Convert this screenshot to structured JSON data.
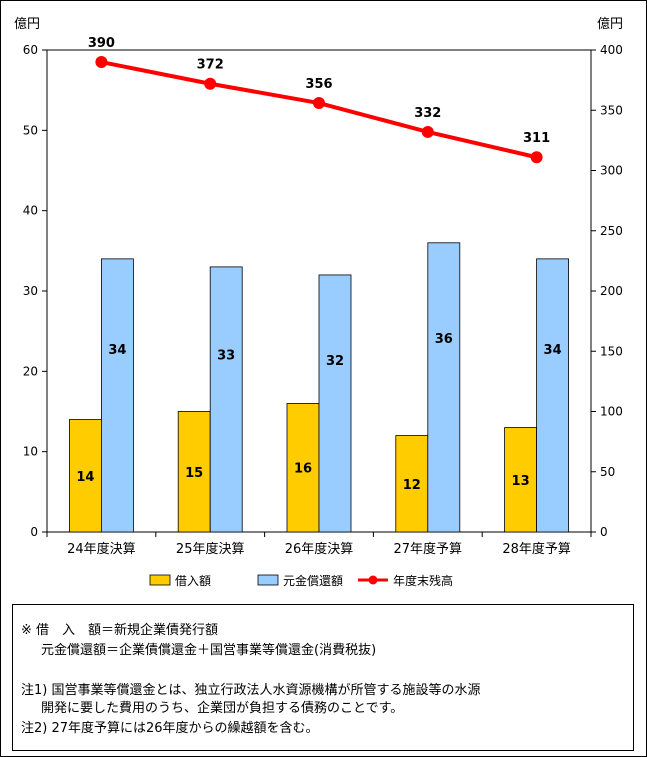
{
  "chart_data": {
    "type": "bar+line",
    "categories": [
      "24年度決算",
      "25年度決算",
      "26年度決算",
      "27年度予算",
      "28年度予算"
    ],
    "series": [
      {
        "name": "借入額",
        "type": "bar",
        "axis": "left",
        "color": "#ffcc00",
        "values": [
          14,
          15,
          16,
          12,
          13
        ]
      },
      {
        "name": "元金償還額",
        "type": "bar",
        "axis": "left",
        "color": "#99ccff",
        "values": [
          34,
          33,
          32,
          36,
          34
        ]
      },
      {
        "name": "年度末残高",
        "type": "line",
        "axis": "right",
        "color": "#ff0000",
        "values": [
          390,
          372,
          356,
          332,
          311
        ]
      }
    ],
    "left_axis": {
      "unit": "億円",
      "ylim": [
        0,
        60
      ],
      "ticks": [
        "0",
        "10",
        "20",
        "30",
        "40",
        "50",
        "60"
      ]
    },
    "right_axis": {
      "unit": "億円",
      "ylim": [
        0,
        400
      ],
      "ticks": [
        "0",
        "50",
        "100",
        "150",
        "200",
        "250",
        "300",
        "350",
        "400"
      ]
    },
    "grid": false,
    "legend_position": "bottom"
  },
  "notes": {
    "lines": [
      "※ 借　入　額＝新規企業債発行額",
      "元金償還額＝企業債償還金＋国営事業等償還金(消費税抜)",
      "注1) 国営事業等償還金とは、独立行政法人水資源機構が所管する施設等の水源",
      "開発に要した費用のうち、企業団が負担する債務のことです。",
      "注2) 27年度予算には26年度からの繰越額を含む。"
    ]
  }
}
